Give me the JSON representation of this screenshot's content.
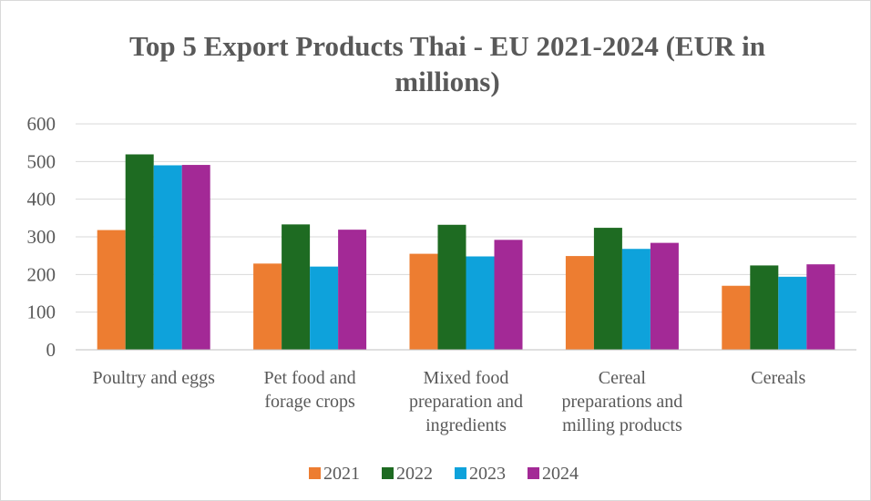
{
  "chart_data": {
    "type": "bar",
    "title_lines": [
      "Top 5 Export Products Thai - EU 2021-2024 (EUR in",
      "millions)"
    ],
    "xlabel": "",
    "ylabel": "",
    "ylim": [
      0,
      600
    ],
    "yticks": [
      "0",
      "100",
      "200",
      "300",
      "400",
      "500",
      "600"
    ],
    "grid": true,
    "legend_position": "bottom",
    "categories": [
      "Poultry and eggs",
      "Pet food and forage crops",
      "Mixed food preparation and ingredients",
      "Cereal preparations and milling products",
      "Cereals"
    ],
    "category_label_lines": [
      [
        "Poultry and eggs"
      ],
      [
        "Pet food and",
        "forage crops"
      ],
      [
        "Mixed food",
        "preparation and",
        "ingredients"
      ],
      [
        "Cereal",
        "preparations and",
        "milling products"
      ],
      [
        "Cereals"
      ]
    ],
    "series": [
      {
        "name": "2021",
        "color": "#ED7D31",
        "values": [
          318,
          229,
          255,
          249,
          170
        ]
      },
      {
        "name": "2022",
        "color": "#1E6B22",
        "values": [
          519,
          333,
          332,
          324,
          224
        ]
      },
      {
        "name": "2023",
        "color": "#0EA2DB",
        "values": [
          490,
          221,
          248,
          268,
          194
        ]
      },
      {
        "name": "2024",
        "color": "#A32996",
        "values": [
          491,
          319,
          292,
          284,
          227
        ]
      }
    ],
    "colors": {
      "grid": "#d9d9d9",
      "axis": "#bfbfbf",
      "text": "#595959"
    }
  }
}
